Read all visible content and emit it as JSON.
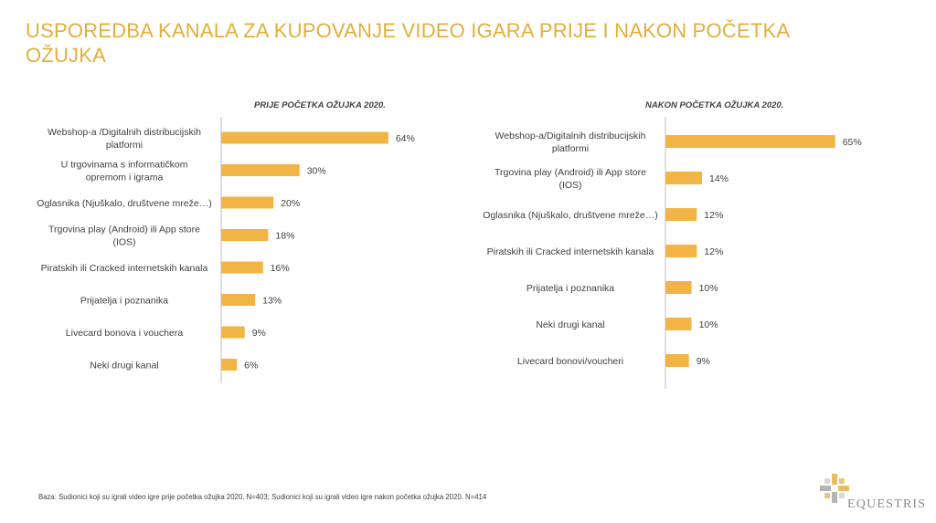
{
  "title": "USPOREDBA KANALA ZA KUPOVANJE VIDEO IGARA PRIJE I NAKON POČETKA OŽUJKA",
  "footnote": "Baza: Sudionici koji su igrali video igre prije početka ožujka 2020. N=403; Sudionici koji su igrali video igre nakon početka ožujka 2020. N=414",
  "logo": {
    "text": "EQUESTRIS"
  },
  "colors": {
    "bar": "#f2b445",
    "title": "#e3ae3c",
    "axis": "#bfbfbf"
  },
  "chart_data": [
    {
      "type": "bar",
      "orientation": "horizontal",
      "title": "PRIJE POČETKA OŽUJKA 2020.",
      "categories": [
        "Webshop-a /Digitalnih distribucijskih platformi",
        "U trgovinama s informatičkom opremom i igrama",
        "Oglasnika (Njuškalo, društvene mreže…)",
        "Trgovina play (Android) ili App store (IOS)",
        "Piratskih ili Cracked internetskih kanala",
        "Prijatelja i poznanika",
        "Livecard bonova i vouchera",
        "Neki drugi kanal"
      ],
      "label_lines": [
        [
          "Webshop-a /Digitalnih distribucijskih",
          "platformi"
        ],
        [
          "U trgovinama s informatičkom",
          "opremom i igrama"
        ],
        [
          "Oglasnika (Njuškalo, društvene mreže…)"
        ],
        [
          "Trgovina play (Android) ili App store",
          "(IOS)"
        ],
        [
          "Piratskih ili Cracked internetskih kanala"
        ],
        [
          "Prijatelja i poznanika"
        ],
        [
          "Livecard bonova i vouchera"
        ],
        [
          "Neki drugi kanal"
        ]
      ],
      "values": [
        64,
        30,
        20,
        18,
        16,
        13,
        9,
        6
      ],
      "value_labels": [
        "64%",
        "30%",
        "20%",
        "18%",
        "16%",
        "13%",
        "9%",
        "6%"
      ],
      "unit": "%",
      "xlim": [
        0,
        70
      ]
    },
    {
      "type": "bar",
      "orientation": "horizontal",
      "title": "NAKON POČETKA OŽUJKA 2020.",
      "categories": [
        "Webshop-a/Digitalnih distribucijskih platformi",
        "Trgovina play (Android) ili App store (IOS)",
        "Oglasnika (Njuškalo, društvene mreže…)",
        "Piratskih ili Cracked internetskih kanala",
        "Prijatelja i poznanika",
        "Neki drugi kanal",
        "Livecard bonovi/voucheri"
      ],
      "label_lines": [
        [
          "Webshop-a/Digitalnih distribucijskih",
          "platformi"
        ],
        [
          "Trgovina play (Android) ili App store",
          "(IOS)"
        ],
        [
          "Oglasnika (Njuškalo, društvene mreže…)"
        ],
        [
          "Piratskih ili Cracked internetskih kanala"
        ],
        [
          "Prijatelja i poznanika"
        ],
        [
          "Neki drugi kanal"
        ],
        [
          "Livecard bonovi/voucheri"
        ]
      ],
      "values": [
        65,
        14,
        12,
        12,
        10,
        10,
        9
      ],
      "value_labels": [
        "65%",
        "14%",
        "12%",
        "12%",
        "10%",
        "10%",
        "9%"
      ],
      "unit": "%",
      "xlim": [
        0,
        70
      ]
    }
  ]
}
